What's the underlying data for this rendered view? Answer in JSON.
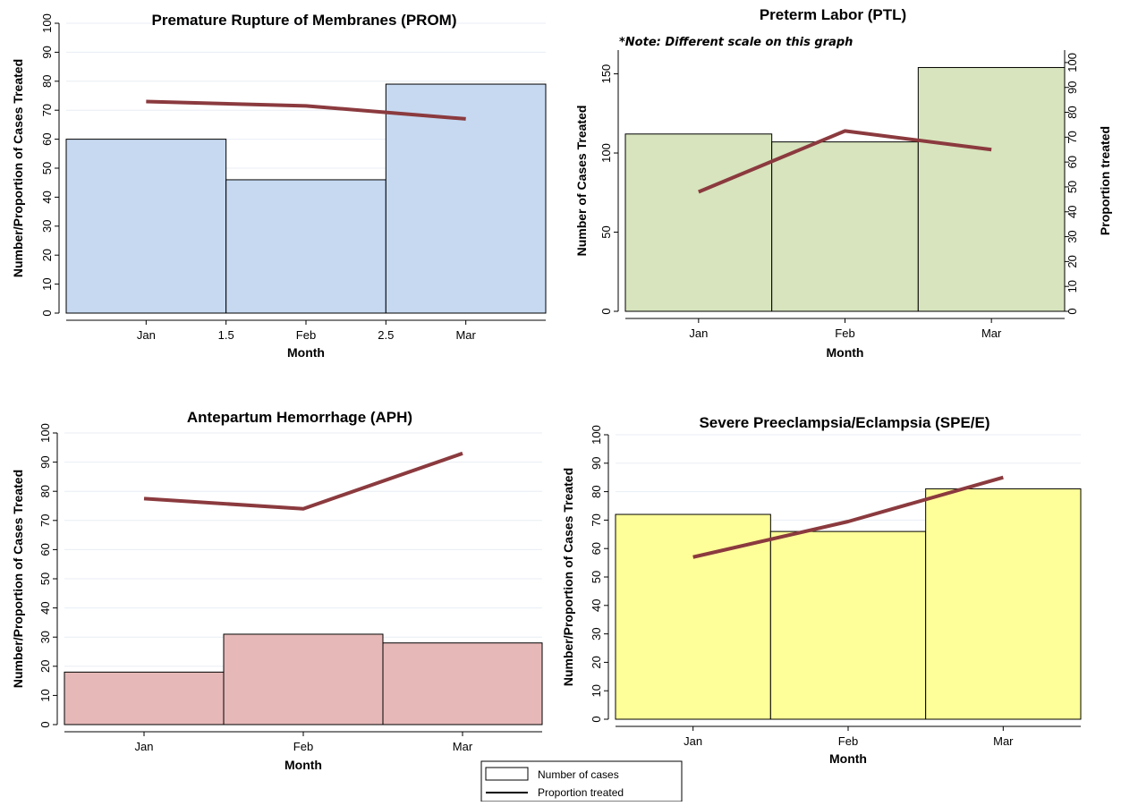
{
  "colors": {
    "line": "#8b3a3e",
    "grid": "#e8eef4",
    "bar_border": "#000000"
  },
  "legend": {
    "cases_label": "Number of cases",
    "proportion_label": "Proportion treated"
  },
  "chart_data": [
    {
      "type": "bar",
      "title": "Premature Rupture of Membranes  (PROM)",
      "xlabel": "Month",
      "ylabel": "Number/Proportion of Cases Treated",
      "ylim": [
        0,
        100
      ],
      "yticks": [
        0,
        10,
        20,
        30,
        40,
        50,
        60,
        70,
        80,
        90,
        100
      ],
      "xlim": [
        0.5,
        3.5
      ],
      "xticks": [
        {
          "value": 1,
          "label": "Jan"
        },
        {
          "value": 1.5,
          "label": "1.5"
        },
        {
          "value": 2,
          "label": "Feb"
        },
        {
          "value": 2.5,
          "label": "2.5"
        },
        {
          "value": 3,
          "label": "Mar"
        }
      ],
      "categories": [
        "Jan",
        "Feb",
        "Mar"
      ],
      "bar_color": "#c6d9f1",
      "series": [
        {
          "name": "Number of cases",
          "kind": "bar",
          "x": [
            0.5,
            1.5,
            2.5
          ],
          "widths": [
            1,
            1,
            1
          ],
          "values": [
            60,
            46,
            79
          ]
        },
        {
          "name": "Proportion treated",
          "kind": "line",
          "x": [
            1,
            2,
            3
          ],
          "values": [
            73,
            71.5,
            67
          ]
        }
      ],
      "grid": true
    },
    {
      "type": "bar",
      "title": "Preterm Labor  (PTL)",
      "note": "*Note: Different scale on this graph",
      "xlabel": "Month",
      "ylabel": "Number of Cases Treated",
      "y2label": "Proportion treated",
      "ylim": [
        0,
        165
      ],
      "yticks": [
        0,
        50,
        100,
        150
      ],
      "y2lim": [
        0,
        105
      ],
      "y2ticks": [
        0,
        10,
        20,
        30,
        40,
        50,
        60,
        70,
        80,
        90,
        100
      ],
      "xlim": [
        0.5,
        3.5
      ],
      "xticks": [
        {
          "value": 1,
          "label": "Jan"
        },
        {
          "value": 2,
          "label": "Feb"
        },
        {
          "value": 3,
          "label": "Mar"
        }
      ],
      "categories": [
        "Jan",
        "Feb",
        "Mar"
      ],
      "bar_color": "#d7e4bd",
      "series": [
        {
          "name": "Number of cases",
          "kind": "bar",
          "x": [
            0.5,
            1.5,
            2.5
          ],
          "widths": [
            1,
            1,
            1
          ],
          "values": [
            112,
            107,
            154
          ]
        },
        {
          "name": "Proportion treated",
          "kind": "line",
          "axis": "y2",
          "x": [
            1,
            2,
            3
          ],
          "values": [
            48,
            72.5,
            65
          ]
        }
      ],
      "grid": false
    },
    {
      "type": "bar",
      "title": "Antepartum  Hemorrhage  (APH)",
      "xlabel": "Month",
      "ylabel": "Number/Proportion of Cases Treated",
      "ylim": [
        0,
        100
      ],
      "yticks": [
        0,
        10,
        20,
        30,
        40,
        50,
        60,
        70,
        80,
        90,
        100
      ],
      "xlim": [
        0.5,
        3.5
      ],
      "xticks": [
        {
          "value": 1,
          "label": "Jan"
        },
        {
          "value": 2,
          "label": "Feb"
        },
        {
          "value": 3,
          "label": "Mar"
        }
      ],
      "categories": [
        "Jan",
        "Feb",
        "Mar"
      ],
      "bar_color": "#e6b9b8",
      "series": [
        {
          "name": "Number of cases",
          "kind": "bar",
          "x": [
            0.5,
            1.5,
            2.5
          ],
          "widths": [
            1,
            1,
            1
          ],
          "values": [
            18,
            31,
            28
          ]
        },
        {
          "name": "Proportion treated",
          "kind": "line",
          "x": [
            1,
            2,
            3
          ],
          "values": [
            77.5,
            74,
            93
          ]
        }
      ],
      "grid": true
    },
    {
      "type": "bar",
      "title": "Severe Preeclampsia/Eclampsia  (SPE/E)",
      "xlabel": "Month",
      "ylabel": "Number/Proportion of Cases Treated",
      "ylim": [
        0,
        100
      ],
      "yticks": [
        0,
        10,
        20,
        30,
        40,
        50,
        60,
        70,
        80,
        90,
        100
      ],
      "xlim": [
        0.5,
        3.5
      ],
      "xticks": [
        {
          "value": 1,
          "label": "Jan"
        },
        {
          "value": 2,
          "label": "Feb"
        },
        {
          "value": 3,
          "label": "Mar"
        }
      ],
      "categories": [
        "Jan",
        "Feb",
        "Mar"
      ],
      "bar_color": "#ffff99",
      "series": [
        {
          "name": "Number of cases",
          "kind": "bar",
          "x": [
            0.5,
            1.5,
            2.5
          ],
          "widths": [
            1,
            1,
            1
          ],
          "values": [
            72,
            66,
            81
          ]
        },
        {
          "name": "Proportion treated",
          "kind": "line",
          "x": [
            1,
            2,
            3
          ],
          "values": [
            57,
            69.5,
            85
          ]
        }
      ],
      "grid": true
    }
  ]
}
